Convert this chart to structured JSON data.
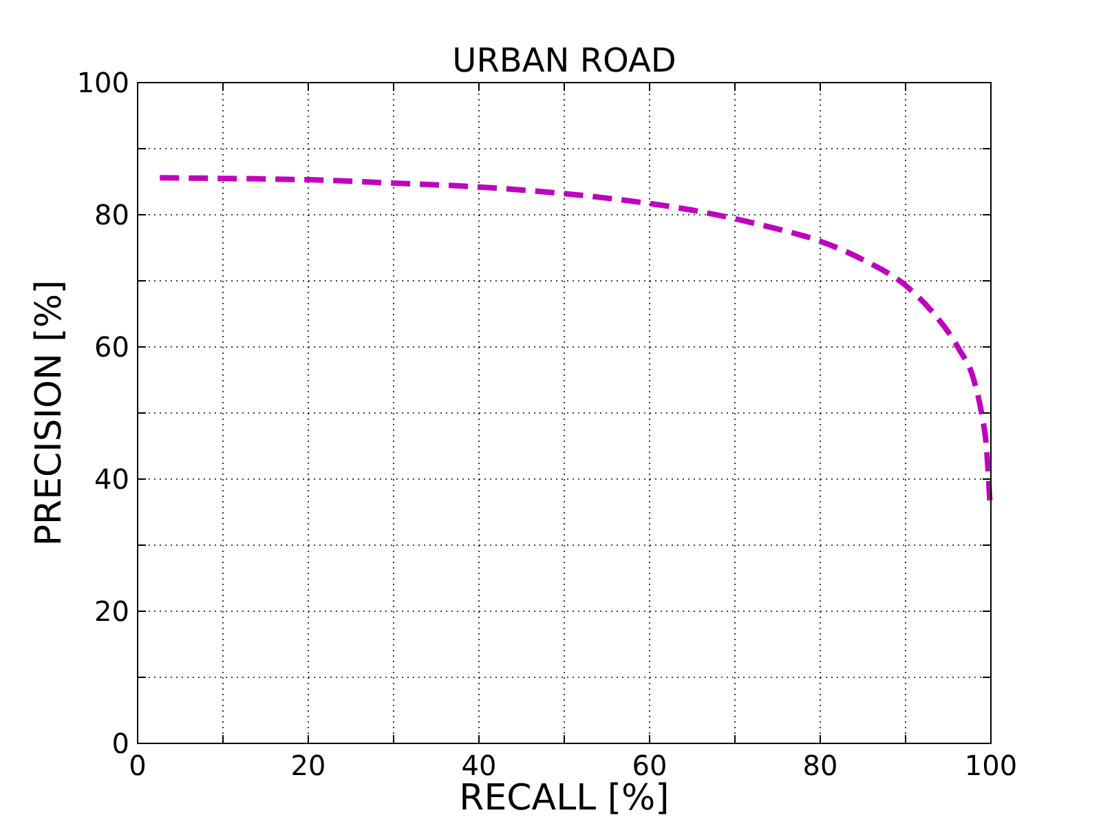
{
  "chart_data": {
    "type": "line",
    "title": "URBAN ROAD",
    "xlabel": "RECALL [%]",
    "ylabel": "PRECISION [%]",
    "x": [
      2.6,
      10,
      20,
      30,
      40,
      50,
      60,
      65,
      70,
      74.2,
      80,
      85,
      90,
      93,
      96.2,
      98,
      98.9,
      99.5,
      99.9
    ],
    "series": [
      {
        "color": "#bf00bf",
        "values": [
          85.6,
          85.5,
          85.3,
          84.8,
          84.2,
          83.2,
          81.7,
          80.7,
          79.4,
          78.1,
          76.0,
          73.2,
          69.3,
          65.5,
          59.8,
          55.0,
          50.0,
          44.5,
          36.1
        ]
      }
    ],
    "xlim": [
      0,
      100
    ],
    "ylim": [
      0,
      100
    ],
    "xticks": [
      0,
      {
        "value": 10,
        "label": null
      },
      20,
      {
        "value": 30,
        "label": null
      },
      40,
      {
        "value": 50,
        "label": null
      },
      60,
      {
        "value": 70,
        "label": null
      },
      80,
      {
        "value": 90,
        "label": null
      },
      100
    ],
    "yticks": [
      0,
      {
        "value": 10,
        "label": null
      },
      20,
      {
        "value": 30,
        "label": null
      },
      40,
      {
        "value": 50,
        "label": null
      },
      60,
      {
        "value": 70,
        "label": null
      },
      80,
      {
        "value": 90,
        "label": null
      },
      100
    ],
    "grid": true,
    "line_style": "dashed",
    "marker": "none"
  }
}
